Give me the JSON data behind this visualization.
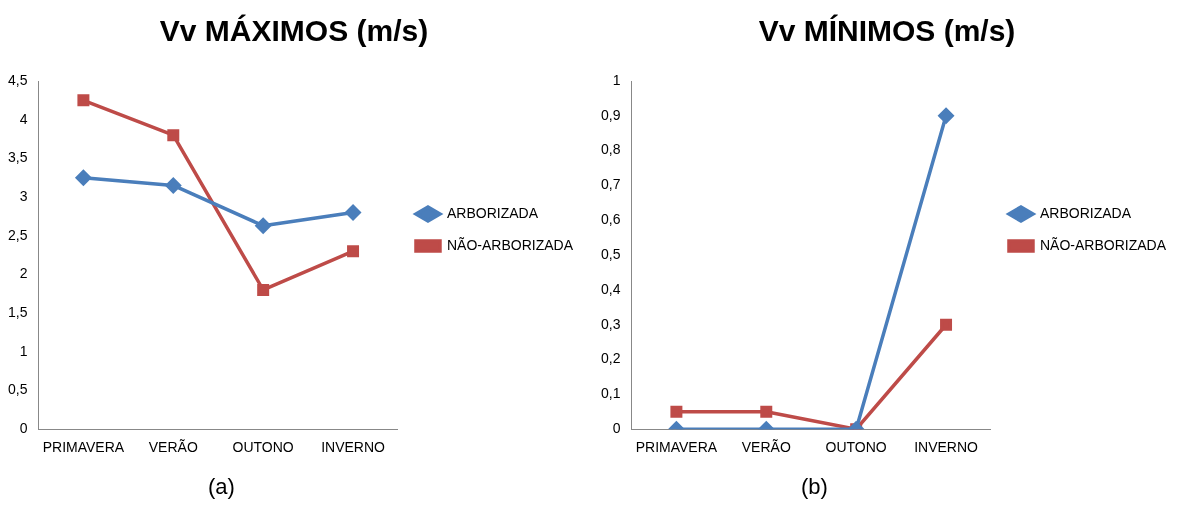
{
  "chart_data": [
    {
      "type": "line",
      "title": "Vv MÁXIMOS (m/s)",
      "categories": [
        "PRIMAVERA",
        "VERÃO",
        "OUTONO",
        "INVERNO"
      ],
      "series": [
        {
          "name": "ARBORIZADA",
          "color": "#4a7ebb",
          "values": [
            3.25,
            3.15,
            2.63,
            2.8
          ],
          "marker": "diamond"
        },
        {
          "name": "NÃO-ARBORIZADA",
          "color": "#be4b48",
          "values": [
            4.25,
            3.8,
            1.8,
            2.3
          ],
          "marker": "square"
        }
      ],
      "ylim": [
        0,
        4.5
      ],
      "yticks": [
        0,
        {
          "value": 0.5,
          "label": "0,5"
        },
        1,
        {
          "value": 1.5,
          "label": "1,5"
        },
        2,
        {
          "value": 2.5,
          "label": "2,5"
        },
        3,
        {
          "value": 3.5,
          "label": "3,5"
        },
        4,
        {
          "value": 4.5,
          "label": "4,5"
        }
      ],
      "grid": false,
      "legend": "right",
      "line_style": "solid",
      "annotations": [
        "(a)"
      ]
    },
    {
      "type": "line",
      "title": "Vv MÍNIMOS (m/s)",
      "categories": [
        "PRIMAVERA",
        "VERÃO",
        "OUTONO",
        "INVERNO"
      ],
      "series": [
        {
          "name": "ARBORIZADA",
          "color": "#4a7ebb",
          "values": [
            0,
            0,
            0,
            0.9
          ],
          "marker": "diamond"
        },
        {
          "name": "NÃO-ARBORIZADA",
          "color": "#be4b48",
          "values": [
            0.05,
            0.05,
            0,
            0.3
          ],
          "marker": "square"
        }
      ],
      "ylim": [
        0,
        1
      ],
      "yticks": [
        0,
        {
          "value": 0.1,
          "label": "0,1"
        },
        {
          "value": 0.2,
          "label": "0,2"
        },
        {
          "value": 0.3,
          "label": "0,3"
        },
        {
          "value": 0.4,
          "label": "0,4"
        },
        {
          "value": 0.5,
          "label": "0,5"
        },
        {
          "value": 0.6,
          "label": "0,6"
        },
        {
          "value": 0.7,
          "label": "0,7"
        },
        {
          "value": 0.8,
          "label": "0,8"
        },
        {
          "value": 0.9,
          "label": "0,9"
        },
        1
      ],
      "grid": false,
      "legend": "right",
      "line_style": "solid",
      "annotations": [
        "(b)"
      ]
    }
  ]
}
